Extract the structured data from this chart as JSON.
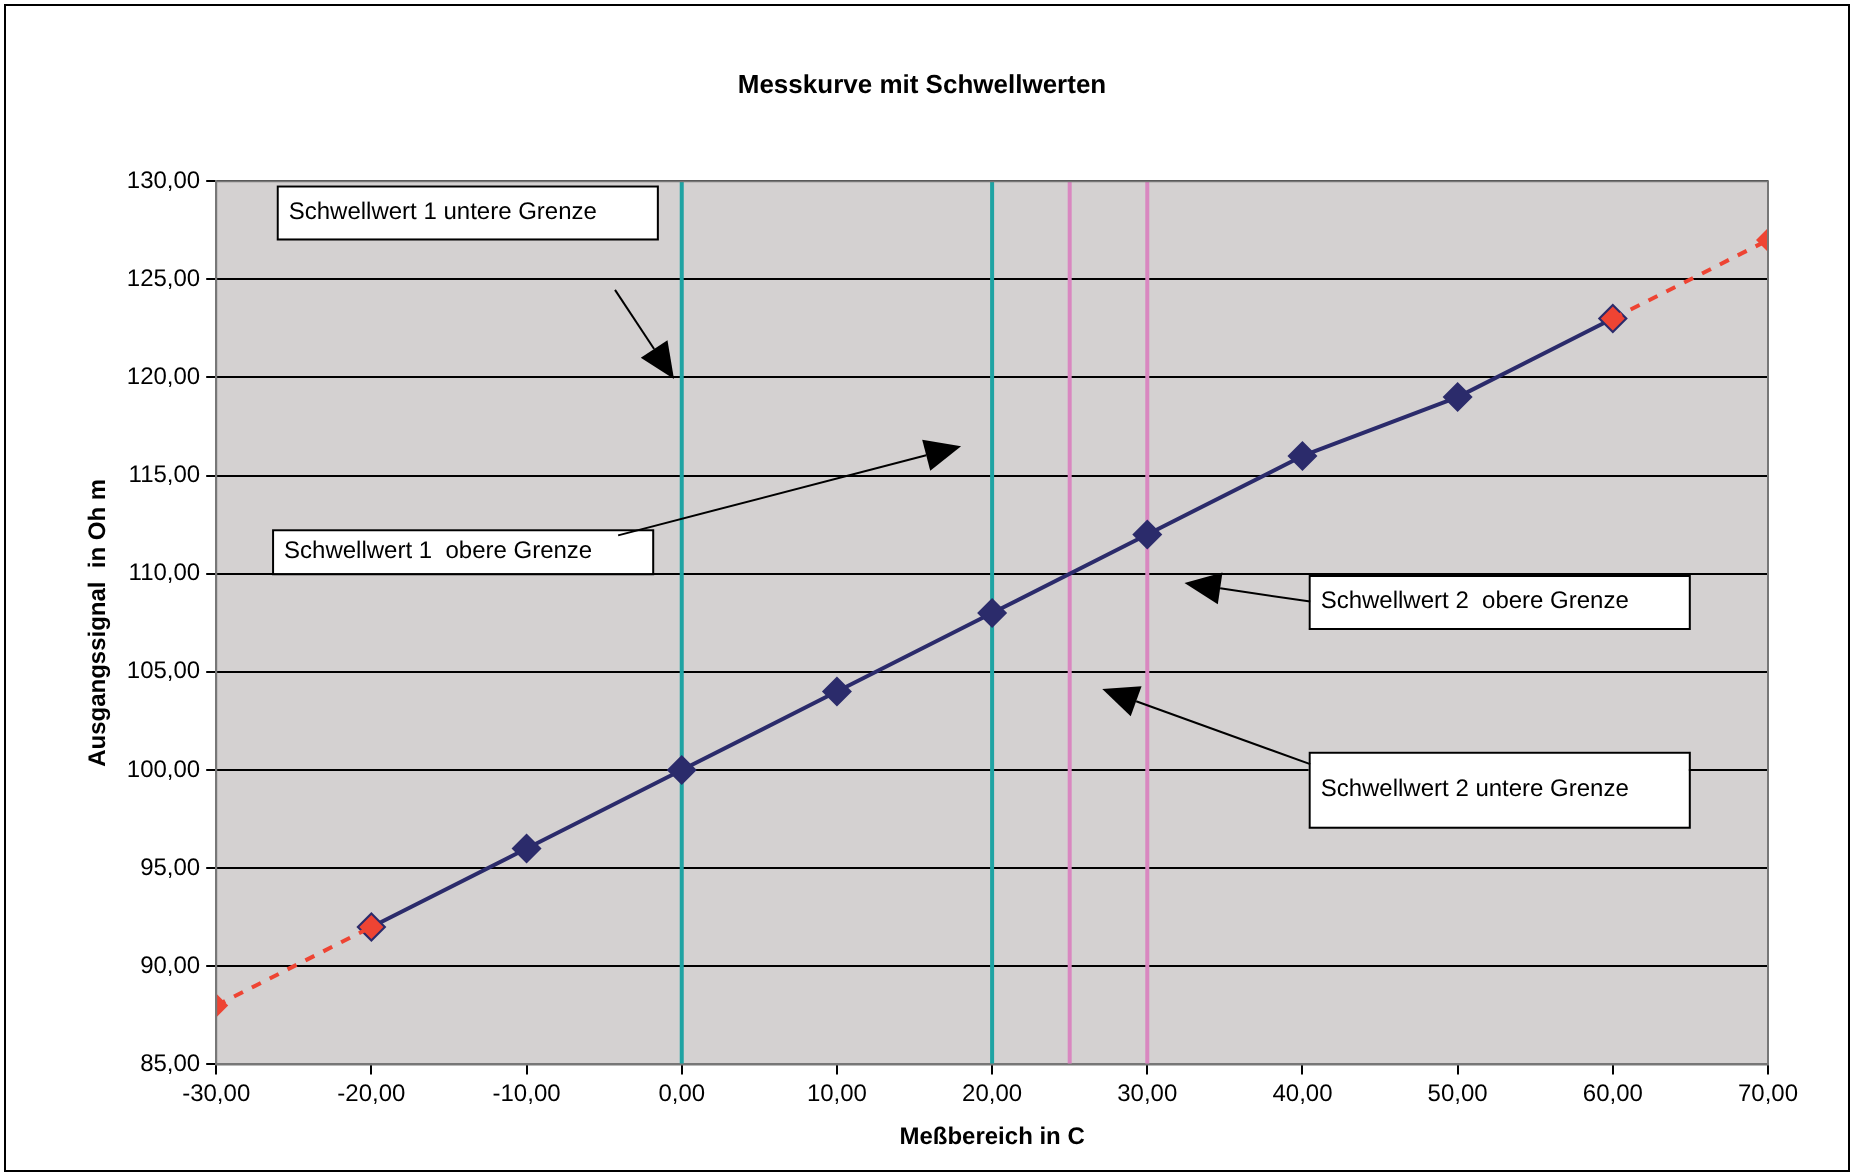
{
  "chart_data": {
    "type": "line",
    "title": "Messkurve mit Schwellwerten",
    "xlabel": "Meßbereich in C",
    "ylabel": "Ausgangssignal  in Oh m",
    "series": [
      {
        "color": "#2b2b6b",
        "x": [
          -20,
          -10,
          0,
          10,
          20,
          30,
          40,
          50,
          60
        ],
        "values": [
          92,
          96,
          100,
          104,
          108,
          112,
          116,
          119,
          123
        ],
        "marker": "diamond",
        "line_style": "solid"
      },
      {
        "color": "#ee4433",
        "x": [
          -30,
          -20
        ],
        "values": [
          88,
          92
        ],
        "marker": "diamond",
        "line_style": "dashed"
      },
      {
        "color": "#ee4433",
        "x": [
          60,
          70
        ],
        "values": [
          123,
          127
        ],
        "marker": "diamond",
        "line_style": "dashed"
      }
    ],
    "xlim": [
      -30,
      70
    ],
    "xticks": [
      {
        "value": -30,
        "label": "-30,00"
      },
      {
        "value": -20,
        "label": "-20,00"
      },
      {
        "value": -10,
        "label": "-10,00"
      },
      {
        "value": 0,
        "label": "0,00"
      },
      {
        "value": 10,
        "label": "10,00"
      },
      {
        "value": 20,
        "label": "20,00"
      },
      {
        "value": 30,
        "label": "30,00"
      },
      {
        "value": 40,
        "label": "40,00"
      },
      {
        "value": 50,
        "label": "50,00"
      },
      {
        "value": 60,
        "label": "60,00"
      },
      {
        "value": 70,
        "label": "70,00"
      }
    ],
    "ylim": [
      85,
      130
    ],
    "yticks": [
      {
        "value": 85,
        "label": "85,00"
      },
      {
        "value": 90,
        "label": "90,00"
      },
      {
        "value": 95,
        "label": "95,00"
      },
      {
        "value": 100,
        "label": "100,00"
      },
      {
        "value": 105,
        "label": "105,00"
      },
      {
        "value": 110,
        "label": "110,00"
      },
      {
        "value": 115,
        "label": "115,00"
      },
      {
        "value": 120,
        "label": "120,00"
      },
      {
        "value": 125,
        "label": "125,00"
      },
      {
        "value": 130,
        "label": "130,00"
      }
    ],
    "grid": "y",
    "legend": false,
    "ref_lines": [
      {
        "axis": "x",
        "value": 0,
        "color": "#1fa3a3"
      },
      {
        "axis": "x",
        "value": 20,
        "color": "#1fa3a3"
      },
      {
        "axis": "x",
        "value": 25,
        "color": "#d987c0"
      },
      {
        "axis": "x",
        "value": 30,
        "color": "#d987c0"
      }
    ],
    "annotations": [
      "Schwellwert 1 untere Grenze",
      "Schwellwert 1  obere Grenze",
      "Schwellwert 2  obere Grenze",
      "Schwellwert 2 untere Grenze"
    ]
  }
}
